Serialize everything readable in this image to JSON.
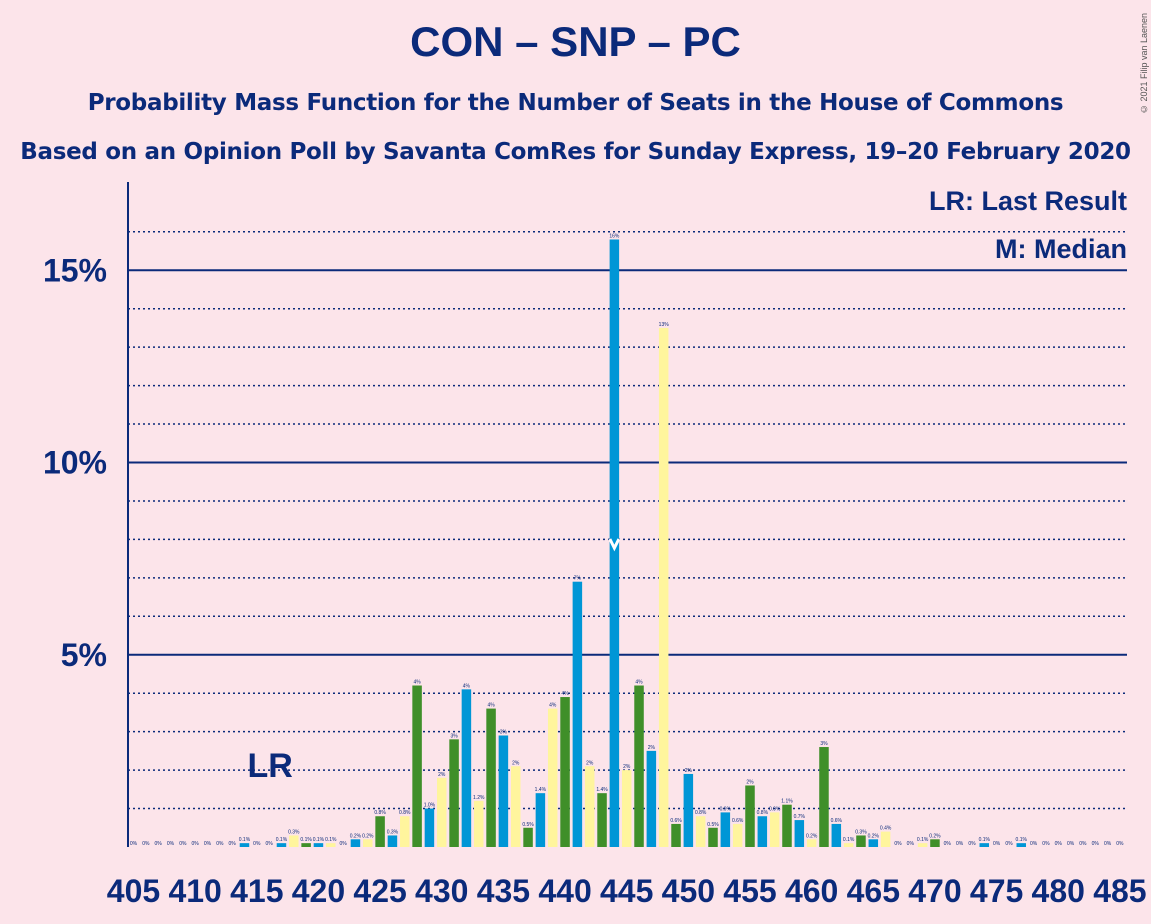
{
  "title": "CON – SNP – PC",
  "subtitle": "Probability Mass Function for the Number of Seats in the House of Commons",
  "subtitle2": "Based on an Opinion Poll by Savanta ComRes for Sunday Express, 19–20 February 2020",
  "copyright": "© 2021 Filip van Laenen",
  "legend": {
    "lr": "LR: Last Result",
    "m": "M: Median"
  },
  "markers": {
    "last_result_label": "LR",
    "last_result_seat": 416,
    "median_seat": 444
  },
  "colors": {
    "background": "#FCE4EA",
    "axis": "#0B2A7A",
    "con": "#0096D6",
    "snp": "#FFF59D",
    "pc": "#3F8F29"
  },
  "chart_data": {
    "type": "bar",
    "xlabel": "",
    "ylabel": "",
    "ylim": [
      0,
      17
    ],
    "y_major_ticks": [
      5,
      10,
      15
    ],
    "y_tick_labels": [
      "5%",
      "10%",
      "15%"
    ],
    "grid": "dotted minor gridlines every 1%, solid at 5%, 10%, 15%",
    "x_tick_labels": [
      "405",
      "410",
      "415",
      "420",
      "425",
      "430",
      "435",
      "440",
      "445",
      "450",
      "455",
      "460",
      "465",
      "470",
      "475",
      "480",
      "485"
    ],
    "x": [
      405,
      406,
      407,
      408,
      409,
      410,
      411,
      412,
      413,
      414,
      415,
      416,
      417,
      418,
      419,
      420,
      421,
      422,
      423,
      424,
      425,
      426,
      427,
      428,
      429,
      430,
      431,
      432,
      433,
      434,
      435,
      436,
      437,
      438,
      439,
      440,
      441,
      442,
      443,
      444,
      445,
      446,
      447,
      448,
      449,
      450,
      451,
      452,
      453,
      454,
      455,
      456,
      457,
      458,
      459,
      460,
      461,
      462,
      463,
      464,
      465,
      466,
      467,
      468,
      469,
      470,
      471,
      472,
      473,
      474,
      475,
      476,
      477,
      478,
      479,
      480,
      481,
      482,
      483,
      484,
      485
    ],
    "values": [
      0,
      0,
      0,
      0,
      0,
      0,
      0,
      0,
      0,
      0.1,
      0,
      0,
      0.1,
      0.3,
      0.1,
      0.1,
      0.1,
      0,
      0.2,
      0.2,
      0.8,
      0.3,
      0.8,
      4.2,
      1.0,
      1.8,
      2.8,
      4.1,
      1.2,
      3.6,
      2.9,
      2.1,
      0.5,
      1.4,
      3.6,
      3.9,
      6.9,
      2.1,
      1.4,
      15.8,
      2.0,
      4.2,
      2.5,
      13.5,
      0.6,
      1.9,
      0.8,
      0.5,
      0.9,
      0.6,
      1.6,
      0.8,
      0.9,
      1.1,
      0.7,
      0.2,
      2.6,
      0.6,
      0.1,
      0.3,
      0.2,
      0.4,
      0,
      0,
      0.1,
      0.2,
      0,
      0,
      0,
      0.1,
      0,
      0,
      0.1,
      0,
      0,
      0,
      0,
      0,
      0,
      0,
      0
    ],
    "value_labels": [
      "0%",
      "0%",
      "0%",
      "0%",
      "0%",
      "0%",
      "0%",
      "0%",
      "0%",
      "0.1%",
      "0%",
      "0%",
      "0.1%",
      "0.3%",
      "0.1%",
      "0.1%",
      "0.1%",
      "0%",
      "0.2%",
      "0.2%",
      "0.8%",
      "0.3%",
      "0.8%",
      "4%",
      "1.0%",
      "2%",
      "3%",
      "4%",
      "1.2%",
      "4%",
      "3%",
      "2%",
      "0.5%",
      "1.4%",
      "4%",
      "4%",
      "7%",
      "2%",
      "1.4%",
      "16%",
      "2%",
      "4%",
      "2%",
      "13%",
      "0.6%",
      "2%",
      "0.8%",
      "0.5%",
      "0.9%",
      "0.6%",
      "2%",
      "0.8%",
      "0.9%",
      "1.1%",
      "0.7%",
      "0.2%",
      "3%",
      "0.6%",
      "0.1%",
      "0.3%",
      "0.2%",
      "0.4%",
      "0%",
      "0%",
      "0.1%",
      "0.2%",
      "0%",
      "0%",
      "0%",
      "0.1%",
      "0%",
      "0%",
      "0.1%",
      "0%",
      "0%",
      "0%",
      "0%",
      "0%",
      "0%",
      "0%",
      "0%"
    ]
  }
}
